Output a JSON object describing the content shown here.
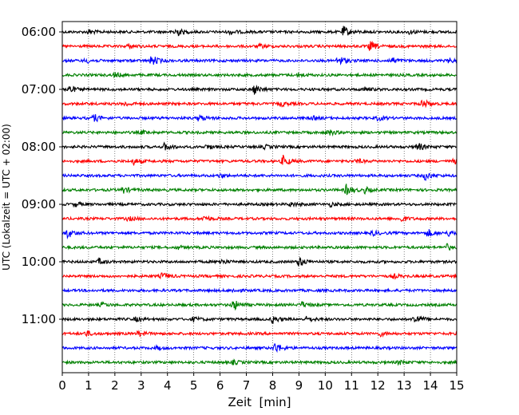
{
  "chart_data": {
    "type": "line",
    "title": "",
    "xlabel": "Zeit  [min]",
    "ylabel": "UTC (Lokalzeit = UTC + 02:00)",
    "xlim": [
      0,
      15
    ],
    "x_ticks": [
      0,
      1,
      2,
      3,
      4,
      5,
      6,
      7,
      8,
      9,
      10,
      11,
      12,
      13,
      14,
      15
    ],
    "y_tick_labels": [
      "06:00",
      "07:00",
      "08:00",
      "09:00",
      "10:00",
      "11:00"
    ],
    "y_tick_rows": [
      0,
      4,
      8,
      12,
      16,
      20
    ],
    "rows_per_hour": 4,
    "minutes_per_row": 15,
    "grid_x": true,
    "grid_style": "dotted",
    "series_colors": [
      "#000000",
      "#ff0000",
      "#0000ff",
      "#008000"
    ],
    "traces": [
      {
        "start": "06:00",
        "color": "#000000",
        "events": [
          [
            4.3,
            1.0
          ],
          [
            10.7,
            1.0
          ],
          [
            1.0,
            0.4
          ],
          [
            6.4,
            0.4
          ],
          [
            13.2,
            0.35
          ]
        ]
      },
      {
        "start": "06:15",
        "color": "#ff0000",
        "events": [
          [
            11.7,
            0.9
          ],
          [
            2.5,
            0.4
          ],
          [
            7.5,
            0.35
          ]
        ]
      },
      {
        "start": "06:30",
        "color": "#0000ff",
        "events": [
          [
            3.4,
            1.0
          ],
          [
            10.5,
            1.0
          ],
          [
            12.5,
            0.6
          ],
          [
            0.9,
            0.4
          ],
          [
            14.7,
            0.4
          ]
        ]
      },
      {
        "start": "06:45",
        "color": "#008000",
        "events": [
          [
            2.0,
            0.4
          ],
          [
            9.0,
            0.35
          ]
        ]
      },
      {
        "start": "07:00",
        "color": "#000000",
        "events": [
          [
            0.2,
            0.9
          ],
          [
            7.3,
            0.9
          ],
          [
            11.5,
            0.35
          ]
        ]
      },
      {
        "start": "07:15",
        "color": "#ff0000",
        "events": [
          [
            13.7,
            0.8
          ],
          [
            2.4,
            0.4
          ],
          [
            8.3,
            0.45
          ]
        ]
      },
      {
        "start": "07:30",
        "color": "#0000ff",
        "events": [
          [
            1.2,
            0.7
          ],
          [
            5.2,
            0.65
          ],
          [
            12.0,
            0.4
          ],
          [
            9.5,
            0.3
          ]
        ]
      },
      {
        "start": "07:45",
        "color": "#008000",
        "events": [
          [
            10.1,
            0.6
          ],
          [
            3.0,
            0.3
          ]
        ]
      },
      {
        "start": "08:00",
        "color": "#000000",
        "events": [
          [
            3.9,
            0.7
          ],
          [
            13.5,
            0.8
          ],
          [
            5.5,
            0.45
          ],
          [
            7.7,
            0.3
          ]
        ]
      },
      {
        "start": "08:15",
        "color": "#ff0000",
        "events": [
          [
            8.4,
            1.0
          ],
          [
            2.7,
            0.55
          ],
          [
            11.2,
            0.4
          ],
          [
            14.9,
            0.4
          ]
        ]
      },
      {
        "start": "08:30",
        "color": "#0000ff",
        "events": [
          [
            13.8,
            0.8
          ],
          [
            6.0,
            0.3
          ]
        ]
      },
      {
        "start": "08:45",
        "color": "#008000",
        "events": [
          [
            10.8,
            1.0
          ],
          [
            2.3,
            0.6
          ],
          [
            11.5,
            0.5
          ]
        ]
      },
      {
        "start": "09:00",
        "color": "#000000",
        "events": [
          [
            0.5,
            0.4
          ],
          [
            8.7,
            0.4
          ],
          [
            10.2,
            0.35
          ]
        ]
      },
      {
        "start": "09:15",
        "color": "#ff0000",
        "events": [
          [
            5.4,
            0.5
          ],
          [
            12.9,
            0.5
          ],
          [
            2.5,
            0.35
          ]
        ]
      },
      {
        "start": "09:30",
        "color": "#0000ff",
        "events": [
          [
            0.2,
            0.9
          ],
          [
            13.9,
            0.7
          ],
          [
            14.7,
            0.5
          ],
          [
            11.8,
            0.4
          ]
        ]
      },
      {
        "start": "09:45",
        "color": "#008000",
        "events": [
          [
            14.6,
            0.6
          ],
          [
            4.4,
            0.3
          ]
        ]
      },
      {
        "start": "10:00",
        "color": "#000000",
        "events": [
          [
            9.0,
            0.9
          ],
          [
            1.4,
            0.5
          ],
          [
            6.0,
            0.5
          ]
        ]
      },
      {
        "start": "10:15",
        "color": "#ff0000",
        "events": [
          [
            3.8,
            0.6
          ],
          [
            12.6,
            0.35
          ]
        ]
      },
      {
        "start": "10:30",
        "color": "#0000ff",
        "events": [
          [
            6.5,
            0.3
          ]
        ]
      },
      {
        "start": "10:45",
        "color": "#008000",
        "events": [
          [
            6.5,
            1.0
          ],
          [
            9.1,
            0.55
          ],
          [
            1.5,
            0.35
          ]
        ]
      },
      {
        "start": "11:00",
        "color": "#000000",
        "events": [
          [
            8.0,
            0.7
          ],
          [
            13.4,
            1.0
          ],
          [
            9.3,
            0.5
          ],
          [
            5.0,
            0.4
          ],
          [
            2.8,
            0.35
          ]
        ]
      },
      {
        "start": "11:15",
        "color": "#ff0000",
        "events": [
          [
            0.9,
            0.5
          ],
          [
            2.9,
            0.5
          ],
          [
            12.1,
            0.4
          ]
        ]
      },
      {
        "start": "11:30",
        "color": "#0000ff",
        "events": [
          [
            8.1,
            1.0
          ],
          [
            3.6,
            0.3
          ]
        ]
      },
      {
        "start": "11:45",
        "color": "#008000",
        "events": [
          [
            6.5,
            0.35
          ],
          [
            12.8,
            0.35
          ]
        ]
      }
    ]
  }
}
